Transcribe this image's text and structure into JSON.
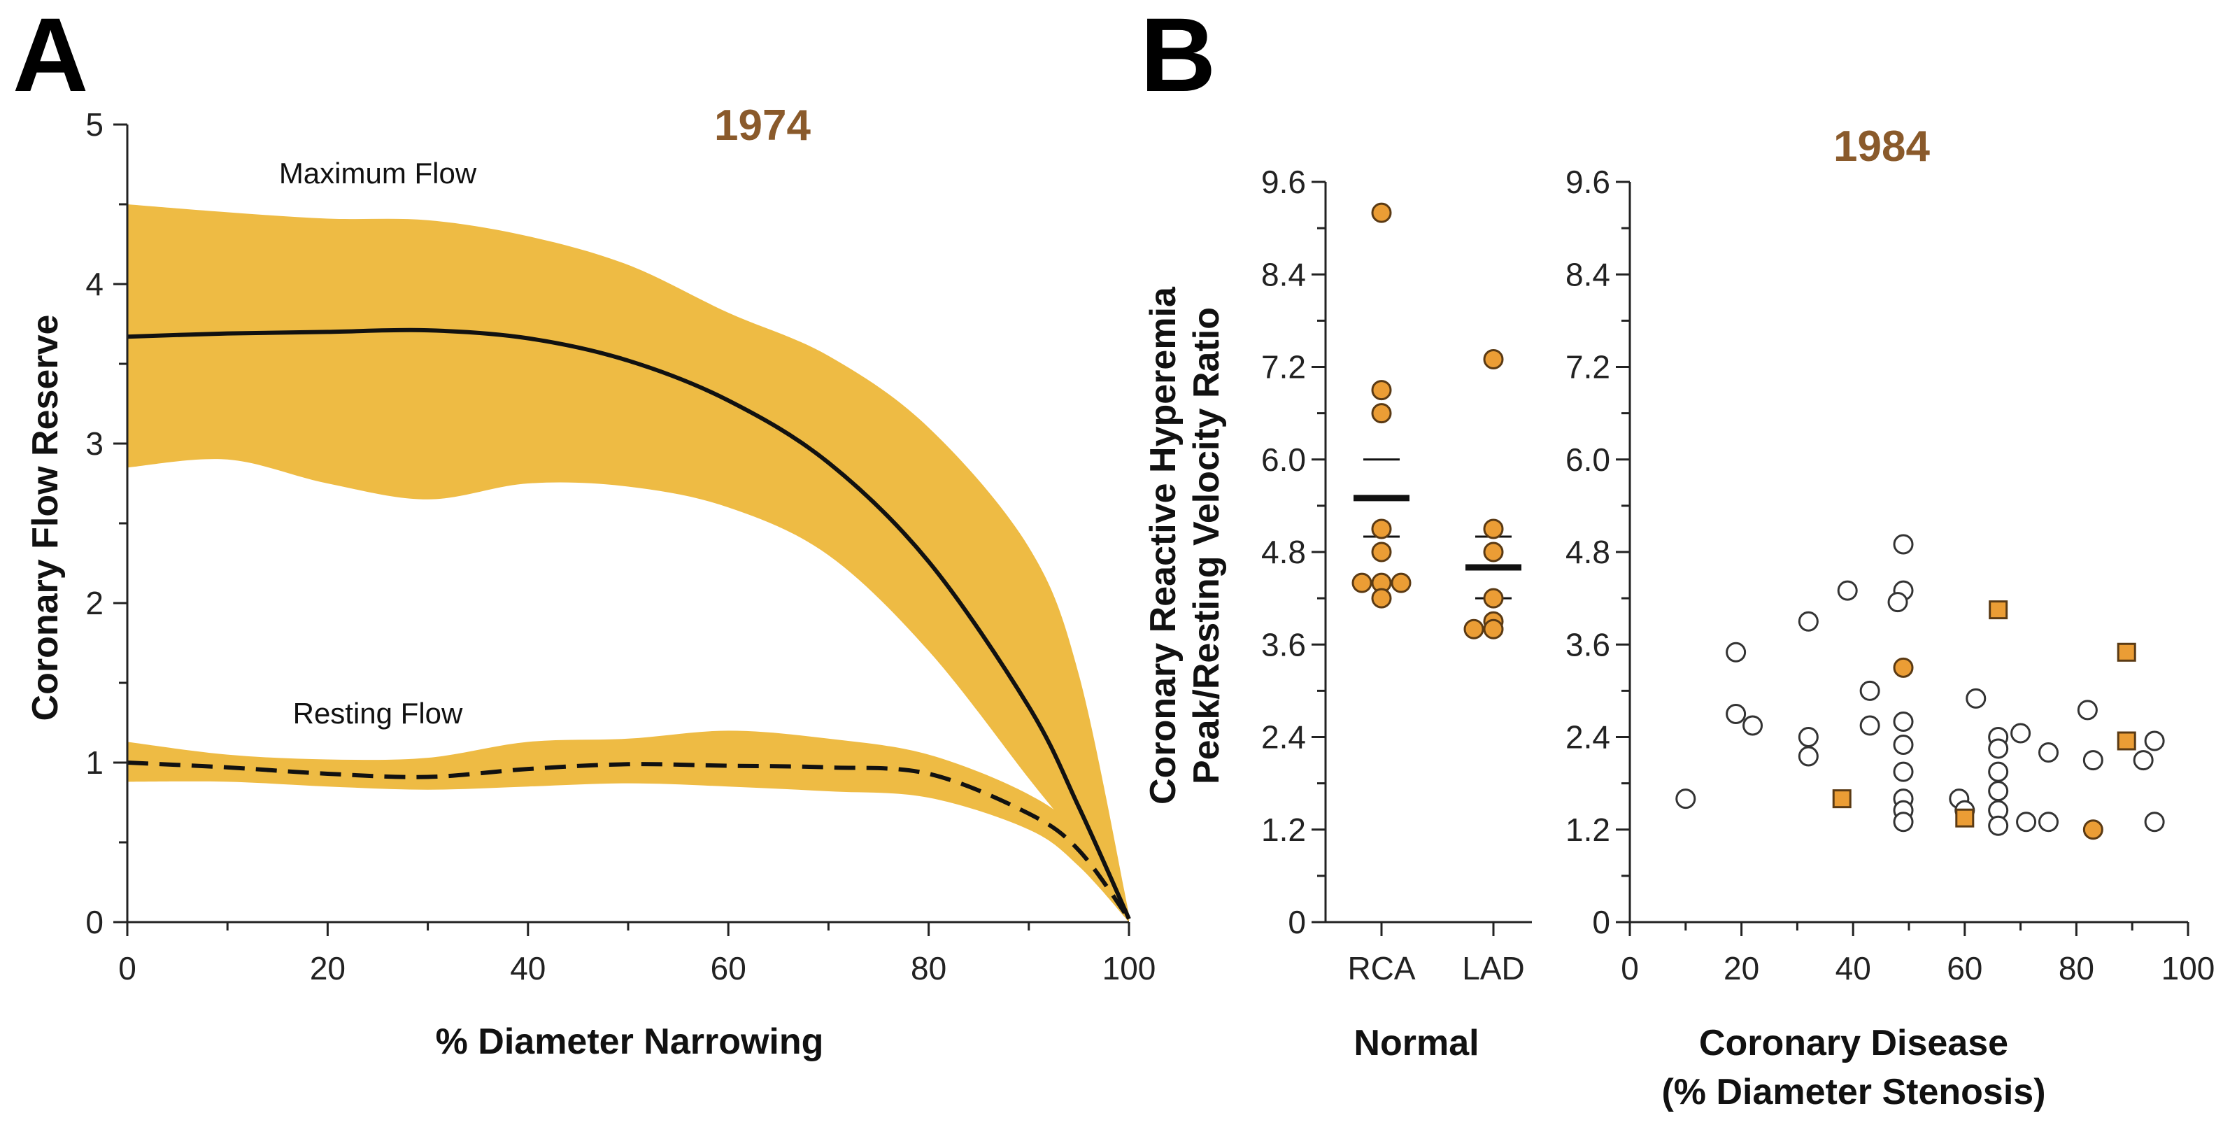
{
  "panels": {
    "a": {
      "letter": "A",
      "year": "1974"
    },
    "b": {
      "letter": "B",
      "year": "1984"
    }
  },
  "colors": {
    "band": "#eebb44",
    "marker": "#eb9d35",
    "marker_edge": "#5a3a14",
    "year": "#8a5a2b",
    "line": "#111111"
  },
  "chart_data": [
    {
      "type": "area",
      "title": "1974",
      "xlabel": "% Diameter Narrowing",
      "ylabel": "Coronary Flow Reserve",
      "xlim": [
        0,
        100
      ],
      "ylim": [
        0,
        5
      ],
      "x_ticks": [
        "0",
        "20",
        "40",
        "60",
        "80",
        "100"
      ],
      "y_ticks": [
        "0",
        "1",
        "2",
        "3",
        "4",
        "5"
      ],
      "series": [
        {
          "name": "Maximum Flow",
          "line_style": "solid",
          "x": [
            0,
            10,
            20,
            30,
            40,
            50,
            60,
            70,
            80,
            90,
            95,
            100
          ],
          "mean": [
            3.67,
            3.69,
            3.7,
            3.71,
            3.66,
            3.52,
            3.27,
            2.88,
            2.26,
            1.35,
            0.72,
            0.02
          ],
          "upper": [
            4.5,
            4.45,
            4.41,
            4.4,
            4.3,
            4.12,
            3.82,
            3.55,
            3.1,
            2.35,
            1.55,
            0.05
          ],
          "lower": [
            2.85,
            2.9,
            2.75,
            2.65,
            2.75,
            2.73,
            2.6,
            2.3,
            1.7,
            0.9,
            0.5,
            0.0
          ]
        },
        {
          "name": "Resting Flow",
          "line_style": "dashed",
          "x": [
            0,
            10,
            20,
            30,
            40,
            50,
            60,
            70,
            80,
            90,
            95,
            100
          ],
          "mean": [
            1.0,
            0.97,
            0.93,
            0.91,
            0.96,
            0.99,
            0.98,
            0.97,
            0.93,
            0.68,
            0.45,
            0.02
          ],
          "upper": [
            1.13,
            1.05,
            1.02,
            1.03,
            1.13,
            1.15,
            1.2,
            1.15,
            1.05,
            0.8,
            0.55,
            0.05
          ],
          "lower": [
            0.88,
            0.88,
            0.85,
            0.83,
            0.85,
            0.87,
            0.85,
            0.82,
            0.78,
            0.58,
            0.35,
            0.0
          ]
        }
      ]
    },
    {
      "type": "scatter",
      "xlabel": "Normal",
      "ylabel": "Coronary Reactive Hyperemia Peak/Resting Velocity Ratio",
      "ylabel_lines": [
        "Coronary Reactive Hyperemia",
        "Peak/Resting Velocity Ratio"
      ],
      "ylim": [
        0,
        9.6
      ],
      "y_ticks": [
        "0",
        "1.2",
        "2.4",
        "3.6",
        "4.8",
        "6.0",
        "7.2",
        "8.4",
        "9.6"
      ],
      "categories": [
        "RCA",
        "LAD"
      ],
      "points": [
        {
          "category": "RCA",
          "y": 9.2
        },
        {
          "category": "RCA",
          "y": 6.9
        },
        {
          "category": "RCA",
          "y": 6.6
        },
        {
          "category": "RCA",
          "y": 5.1
        },
        {
          "category": "RCA",
          "y": 4.8
        },
        {
          "category": "RCA",
          "y": 4.4
        },
        {
          "category": "RCA",
          "y": 4.4
        },
        {
          "category": "RCA",
          "y": 4.4
        },
        {
          "category": "RCA",
          "y": 4.2
        },
        {
          "category": "LAD",
          "y": 7.3
        },
        {
          "category": "LAD",
          "y": 5.1
        },
        {
          "category": "LAD",
          "y": 4.8
        },
        {
          "category": "LAD",
          "y": 4.2
        },
        {
          "category": "LAD",
          "y": 3.9
        },
        {
          "category": "LAD",
          "y": 3.8
        },
        {
          "category": "LAD",
          "y": 3.8
        }
      ],
      "summary": [
        {
          "category": "RCA",
          "mean": 5.5,
          "sd_upper": 6.0,
          "sd_lower": 5.0
        },
        {
          "category": "LAD",
          "mean": 4.6,
          "sd_upper": 5.0,
          "sd_lower": 4.2
        }
      ]
    },
    {
      "type": "scatter",
      "title": "1984",
      "xlabel_lines": [
        "Coronary Disease",
        "(% Diameter Stenosis)"
      ],
      "xlim": [
        0,
        100
      ],
      "ylim": [
        0,
        9.6
      ],
      "x_ticks": [
        "0",
        "20",
        "40",
        "60",
        "80",
        "100"
      ],
      "y_ticks": [
        "0",
        "1.2",
        "2.4",
        "3.6",
        "4.8",
        "6.0",
        "7.2",
        "8.4",
        "9.6"
      ],
      "points": [
        {
          "x": 10,
          "y": 1.6,
          "marker": "open-circle"
        },
        {
          "x": 19,
          "y": 3.5,
          "marker": "open-circle"
        },
        {
          "x": 19,
          "y": 2.7,
          "marker": "open-circle"
        },
        {
          "x": 22,
          "y": 2.55,
          "marker": "open-circle"
        },
        {
          "x": 32,
          "y": 3.9,
          "marker": "open-circle"
        },
        {
          "x": 32,
          "y": 2.4,
          "marker": "open-circle"
        },
        {
          "x": 32,
          "y": 2.15,
          "marker": "open-circle"
        },
        {
          "x": 39,
          "y": 4.3,
          "marker": "open-circle"
        },
        {
          "x": 43,
          "y": 3.0,
          "marker": "open-circle"
        },
        {
          "x": 43,
          "y": 2.55,
          "marker": "open-circle"
        },
        {
          "x": 49,
          "y": 4.9,
          "marker": "open-circle"
        },
        {
          "x": 49,
          "y": 4.3,
          "marker": "open-circle"
        },
        {
          "x": 48,
          "y": 4.15,
          "marker": "open-circle"
        },
        {
          "x": 49,
          "y": 2.6,
          "marker": "open-circle"
        },
        {
          "x": 49,
          "y": 2.3,
          "marker": "open-circle"
        },
        {
          "x": 49,
          "y": 1.95,
          "marker": "open-circle"
        },
        {
          "x": 49,
          "y": 1.6,
          "marker": "open-circle"
        },
        {
          "x": 49,
          "y": 1.45,
          "marker": "open-circle"
        },
        {
          "x": 49,
          "y": 1.3,
          "marker": "open-circle"
        },
        {
          "x": 59,
          "y": 1.6,
          "marker": "open-circle"
        },
        {
          "x": 60,
          "y": 1.45,
          "marker": "open-circle"
        },
        {
          "x": 62,
          "y": 2.9,
          "marker": "open-circle"
        },
        {
          "x": 66,
          "y": 2.4,
          "marker": "open-circle"
        },
        {
          "x": 66,
          "y": 2.25,
          "marker": "open-circle"
        },
        {
          "x": 66,
          "y": 1.95,
          "marker": "open-circle"
        },
        {
          "x": 66,
          "y": 1.7,
          "marker": "open-circle"
        },
        {
          "x": 66,
          "y": 1.45,
          "marker": "open-circle"
        },
        {
          "x": 66,
          "y": 1.25,
          "marker": "open-circle"
        },
        {
          "x": 70,
          "y": 2.45,
          "marker": "open-circle"
        },
        {
          "x": 71,
          "y": 1.3,
          "marker": "open-circle"
        },
        {
          "x": 75,
          "y": 2.2,
          "marker": "open-circle"
        },
        {
          "x": 75,
          "y": 1.3,
          "marker": "open-circle"
        },
        {
          "x": 82,
          "y": 2.75,
          "marker": "open-circle"
        },
        {
          "x": 83,
          "y": 2.1,
          "marker": "open-circle"
        },
        {
          "x": 92,
          "y": 2.1,
          "marker": "open-circle"
        },
        {
          "x": 94,
          "y": 2.35,
          "marker": "open-circle"
        },
        {
          "x": 94,
          "y": 1.3,
          "marker": "open-circle"
        },
        {
          "x": 49,
          "y": 3.3,
          "marker": "filled-circle"
        },
        {
          "x": 83,
          "y": 1.2,
          "marker": "filled-circle"
        },
        {
          "x": 38,
          "y": 1.6,
          "marker": "filled-square"
        },
        {
          "x": 60,
          "y": 1.35,
          "marker": "filled-square"
        },
        {
          "x": 66,
          "y": 4.05,
          "marker": "filled-square"
        },
        {
          "x": 89,
          "y": 3.5,
          "marker": "filled-square"
        },
        {
          "x": 89,
          "y": 2.35,
          "marker": "filled-square"
        }
      ]
    }
  ]
}
